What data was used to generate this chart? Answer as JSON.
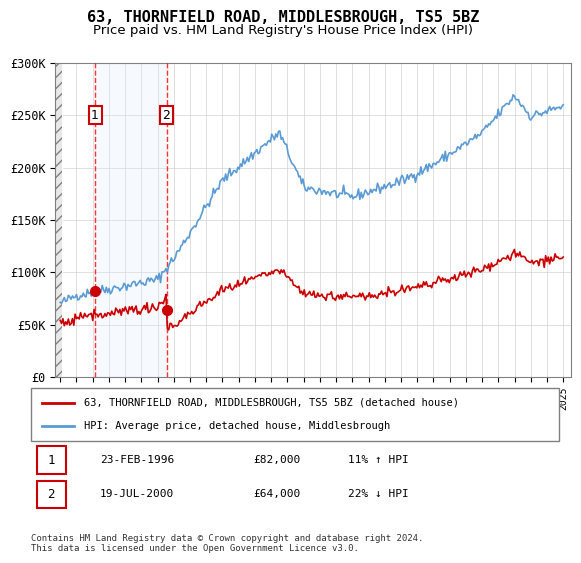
{
  "title": "63, THORNFIELD ROAD, MIDDLESBROUGH, TS5 5BZ",
  "subtitle": "Price paid vs. HM Land Registry's House Price Index (HPI)",
  "title_fontsize": 11,
  "subtitle_fontsize": 9.5,
  "ylabel": "",
  "ylim": [
    0,
    300000
  ],
  "yticks": [
    0,
    50000,
    100000,
    150000,
    200000,
    250000,
    300000
  ],
  "ytick_labels": [
    "£0",
    "£50K",
    "£100K",
    "£150K",
    "£200K",
    "£250K",
    "£300K"
  ],
  "sale1_date": "1996-02-23",
  "sale1_price": 82000,
  "sale1_label": "1",
  "sale2_date": "2000-07-19",
  "sale2_price": 64000,
  "sale2_label": "2",
  "hpi_color": "#5b9bd5",
  "property_color": "#cc0000",
  "hatch_color": "#cccccc",
  "shade_color": "#ddeeff",
  "legend_line1": "63, THORNFIELD ROAD, MIDDLESBROUGH, TS5 5BZ (detached house)",
  "legend_line2": "HPI: Average price, detached house, Middlesbrough",
  "table_row1": [
    "1",
    "23-FEB-1996",
    "£82,000",
    "11% ↑ HPI"
  ],
  "table_row2": [
    "2",
    "19-JUL-2000",
    "£64,000",
    "22% ↓ HPI"
  ],
  "footnote": "Contains HM Land Registry data © Crown copyright and database right 2024.\nThis data is licensed under the Open Government Licence v3.0.",
  "xstart": 1994.0,
  "xend": 2025.5
}
